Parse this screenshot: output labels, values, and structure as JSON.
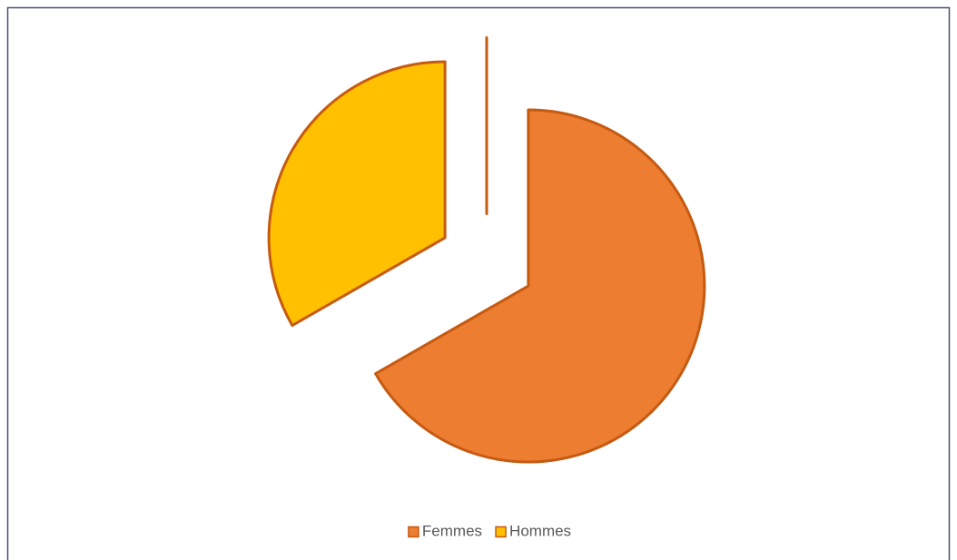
{
  "chart_data": {
    "type": "pie",
    "categories": [
      "Femmes",
      "Hommes",
      null
    ],
    "values": [
      66.7,
      33.3,
      0
    ],
    "colors": [
      "#ed7d31",
      "#ffc000",
      "#a5a5a5"
    ],
    "edge_color": "#c55a11",
    "legend": "bottom"
  }
}
